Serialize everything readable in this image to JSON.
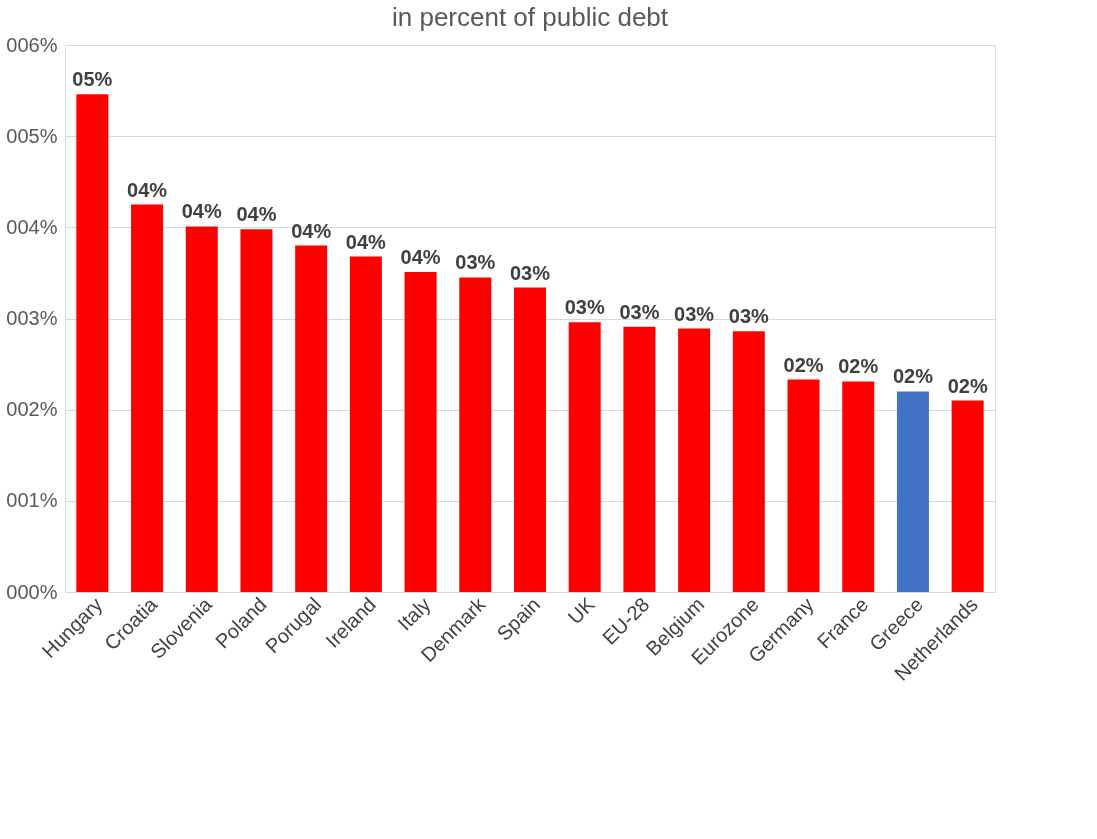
{
  "chart_data": {
    "type": "bar",
    "title": "in percent of public debt",
    "categories": [
      "Hungary",
      "Croatia",
      "Slovenia",
      "Poland",
      "Porugal",
      "Ireland",
      "Italy",
      "Denmark",
      "Spain",
      "UK",
      "EU-28",
      "Belgium",
      "Eurozone",
      "Germany",
      "France",
      "Greece",
      "Netherlands"
    ],
    "values": [
      5.46,
      4.25,
      4.01,
      3.98,
      3.8,
      3.68,
      3.51,
      3.45,
      3.34,
      2.96,
      2.91,
      2.89,
      2.86,
      2.33,
      2.31,
      2.2,
      2.1
    ],
    "colors": [
      "#ff0000",
      "#ff0000",
      "#ff0000",
      "#ff0000",
      "#ff0000",
      "#ff0000",
      "#ff0000",
      "#ff0000",
      "#ff0000",
      "#ff0000",
      "#ff0000",
      "#ff0000",
      "#ff0000",
      "#ff0000",
      "#ff0000",
      "#4472c4",
      "#ff0000"
    ],
    "value_labels": [
      "05%",
      "04%",
      "04%",
      "04%",
      "04%",
      "04%",
      "04%",
      "03%",
      "03%",
      "03%",
      "03%",
      "03%",
      "03%",
      "02%",
      "02%",
      "02%",
      "02%"
    ],
    "ylim": [
      0,
      6
    ],
    "yticks": [
      {
        "value": 0,
        "label": "000%"
      },
      {
        "value": 1,
        "label": "001%"
      },
      {
        "value": 2,
        "label": "002%"
      },
      {
        "value": 3,
        "label": "003%"
      },
      {
        "value": 4,
        "label": "004%"
      },
      {
        "value": 5,
        "label": "005%"
      },
      {
        "value": 6,
        "label": "006%"
      }
    ],
    "grid": "y"
  }
}
